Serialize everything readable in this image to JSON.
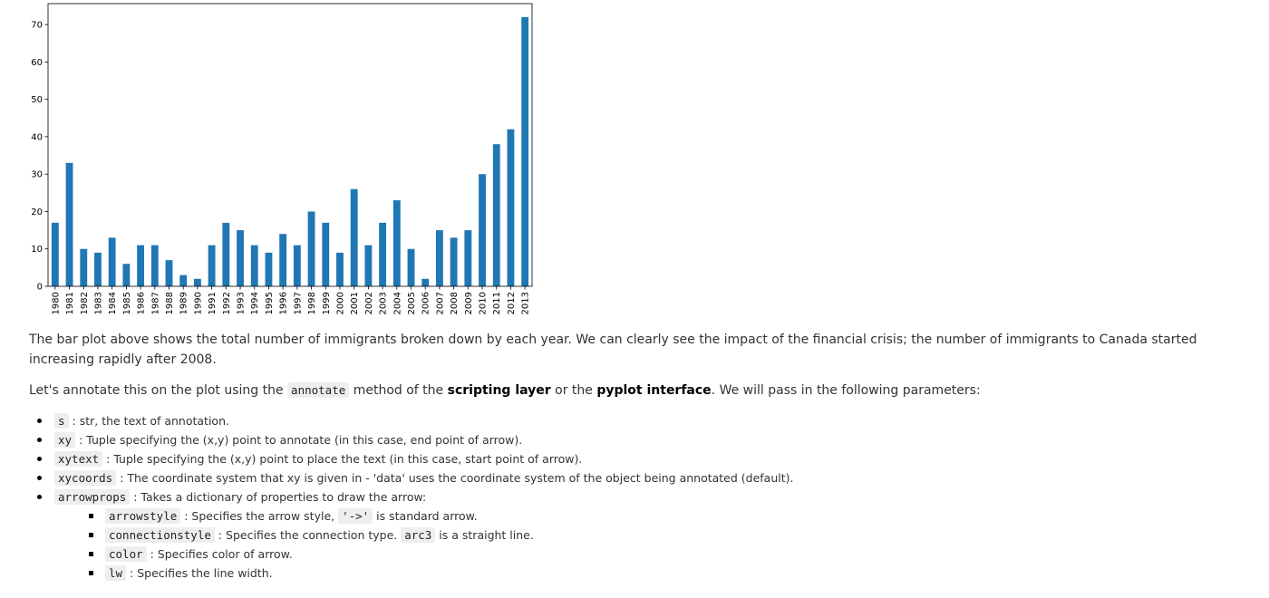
{
  "chart_data": {
    "type": "bar",
    "categories": [
      "1980",
      "1981",
      "1982",
      "1983",
      "1984",
      "1985",
      "1986",
      "1987",
      "1988",
      "1989",
      "1990",
      "1991",
      "1992",
      "1993",
      "1994",
      "1995",
      "1996",
      "1997",
      "1998",
      "1999",
      "2000",
      "2001",
      "2002",
      "2003",
      "2004",
      "2005",
      "2006",
      "2007",
      "2008",
      "2009",
      "2010",
      "2011",
      "2012",
      "2013"
    ],
    "values": [
      17,
      33,
      10,
      9,
      13,
      6,
      11,
      11,
      7,
      3,
      2,
      11,
      17,
      15,
      11,
      9,
      14,
      11,
      20,
      17,
      9,
      26,
      11,
      17,
      23,
      10,
      2,
      15,
      13,
      15,
      30,
      38,
      42,
      72
    ],
    "yticks": [
      0,
      10,
      20,
      30,
      40,
      50,
      60,
      70
    ],
    "ylim": [
      0,
      75.6
    ],
    "bar_color": "#1f77b4",
    "title": "",
    "xlabel": "",
    "ylabel": "",
    "grid": false
  },
  "text": {
    "para1": "The bar plot above shows the total number of immigrants broken down by each year. We can clearly see the impact of the financial crisis; the number of immigrants to Canada started increasing rapidly after 2008.",
    "para2_a": "Let's annotate this on the plot using the ",
    "para2_code": "annotate",
    "para2_b": " method of the ",
    "para2_bold1": "scripting layer",
    "para2_c": " or the ",
    "para2_bold2": "pyplot interface",
    "para2_d": ". We will pass in the following parameters:",
    "bullets": [
      {
        "code": "s",
        "text": " : str, the text of annotation."
      },
      {
        "code": "xy",
        "text": " : Tuple specifying the (x,y) point to annotate (in this case, end point of arrow)."
      },
      {
        "code": "xytext",
        "text": " : Tuple specifying the (x,y) point to place the text (in this case, start point of arrow)."
      },
      {
        "code": "xycoords",
        "text": " : The coordinate system that xy is given in - 'data' uses the coordinate system of the object being annotated (default)."
      },
      {
        "code": "arrowprops",
        "text": " : Takes a dictionary of properties to draw the arrow:"
      }
    ],
    "subbullets": [
      {
        "code": "arrowstyle",
        "text_a": " : Specifies the arrow style, ",
        "code2": "'->'",
        "text_b": " is standard arrow."
      },
      {
        "code": "connectionstyle",
        "text_a": " : Specifies the connection type. ",
        "code2": "arc3",
        "text_b": " is a straight line."
      },
      {
        "code": "color",
        "text_a": " : Specifies color of arrow.",
        "code2": "",
        "text_b": ""
      },
      {
        "code": "lw",
        "text_a": " : Specifies the line width.",
        "code2": "",
        "text_b": ""
      }
    ]
  }
}
